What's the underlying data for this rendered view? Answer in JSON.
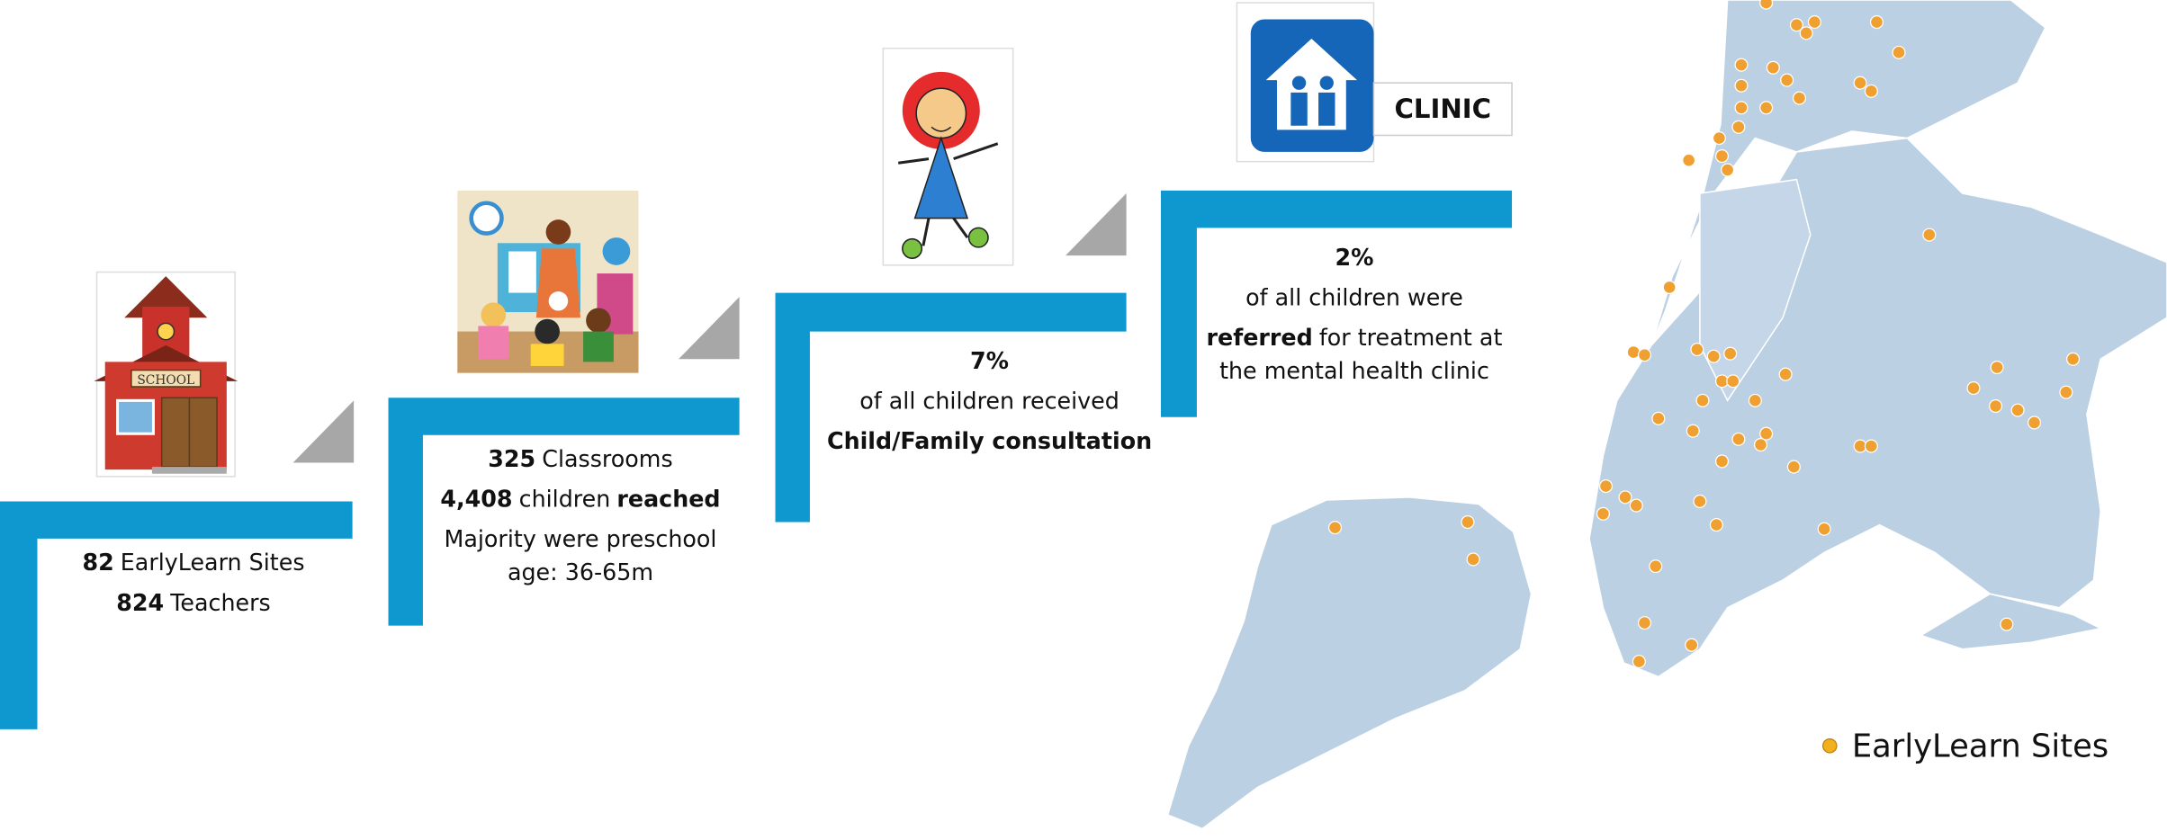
{
  "steps": [
    {
      "lines": [
        [
          {
            "text": "82",
            "bold": true
          },
          {
            "text": "EarlyLearn Sites"
          }
        ],
        [
          {
            "text": "824",
            "bold": true
          },
          {
            "text": "Teachers"
          }
        ]
      ]
    },
    {
      "lines": [
        [
          {
            "text": "325",
            "bold": true
          },
          {
            "text": "Classrooms"
          }
        ],
        [
          {
            "text": "4,408",
            "bold": true
          },
          {
            "text": "children"
          },
          {
            "text": "reached",
            "bold": true
          }
        ],
        [
          {
            "text": "Majority were preschool age: 36-65m"
          }
        ]
      ]
    },
    {
      "lines": [
        [
          {
            "text": "7%",
            "bold": true
          }
        ],
        [
          {
            "text": "of all children received"
          }
        ],
        [
          {
            "text": "Child/Family consultation",
            "bold": true
          }
        ]
      ]
    },
    {
      "lines": [
        [
          {
            "text": "2%",
            "bold": true
          }
        ],
        [
          {
            "text": "of all children were"
          }
        ],
        [
          {
            "text": "referred",
            "bold": true
          },
          {
            "text": "for treatment at the mental health clinic"
          }
        ]
      ]
    }
  ],
  "icons": {
    "school": "SCHOOL",
    "clinic": "CLINIC"
  },
  "legend": {
    "label": "EarlyLearn Sites"
  }
}
